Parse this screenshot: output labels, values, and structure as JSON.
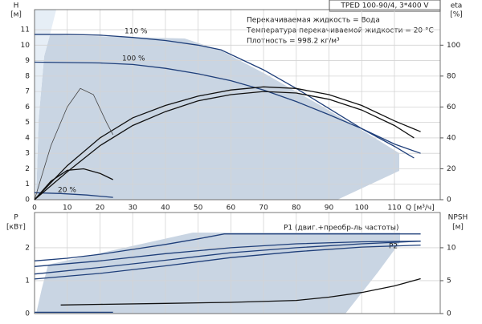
{
  "chart_data": [
    {
      "type": "line",
      "model": "TPED 100-90/4, 3*400 V",
      "info": [
        "Перекачиваемая жидкость = Вода",
        "Температура перекачиваемой жидкости = 20 °C",
        "Плотность = 998.2 кг/м³"
      ],
      "ylabel": "H",
      "yunit": "[м]",
      "y2label": "eta",
      "y2unit": "[%]",
      "xlabel": "Q [м³/ч]",
      "xlim": [
        0,
        124
      ],
      "xticks": [
        0,
        10,
        20,
        30,
        40,
        50,
        60,
        70,
        80,
        90,
        100,
        110
      ],
      "ylim": [
        0,
        12.3
      ],
      "yticks": [
        0,
        1,
        2,
        3,
        4,
        5,
        6,
        7,
        8,
        9,
        10,
        11
      ],
      "y2lim": [
        0,
        123
      ],
      "y2ticks": [
        0,
        20,
        40,
        60,
        80,
        100
      ],
      "grid": true,
      "series": [
        {
          "name": "110 %",
          "color": "#1f3f7a",
          "x": [
            0,
            10,
            20,
            30,
            40,
            50,
            57,
            70,
            80,
            90,
            100,
            110,
            118
          ],
          "values": [
            10.7,
            10.7,
            10.65,
            10.5,
            10.3,
            10.0,
            9.7,
            8.4,
            7.2,
            5.9,
            4.6,
            3.6,
            3.0
          ]
        },
        {
          "name": "100 %",
          "color": "#1f3f7a",
          "x": [
            0,
            20,
            30,
            40,
            50,
            60,
            70,
            80,
            90,
            100,
            110,
            116
          ],
          "values": [
            8.9,
            8.85,
            8.75,
            8.5,
            8.15,
            7.7,
            7.1,
            6.35,
            5.5,
            4.6,
            3.45,
            2.7
          ]
        },
        {
          "name": "20 %",
          "color": "#1f3f7a",
          "x": [
            0,
            8,
            16,
            24
          ],
          "values": [
            0.45,
            0.4,
            0.3,
            0.15
          ]
        },
        {
          "color": "#111111",
          "axis": "y2",
          "x": [
            0,
            10,
            20,
            30,
            40,
            50,
            60,
            70,
            80,
            90,
            100,
            110,
            118
          ],
          "values": [
            0,
            22,
            40,
            53,
            61,
            67,
            71,
            73,
            72,
            68,
            61,
            51,
            44
          ]
        },
        {
          "color": "#111111",
          "axis": "y2",
          "x": [
            0,
            10,
            20,
            30,
            40,
            50,
            60,
            70,
            80,
            90,
            100,
            110,
            116
          ],
          "values": [
            0,
            18,
            35,
            48,
            57,
            64,
            68,
            70,
            69,
            65,
            58,
            48,
            40
          ]
        },
        {
          "color": "#444444",
          "axis": "y2",
          "x": [
            0,
            5,
            10,
            14,
            18,
            22,
            24
          ],
          "values": [
            0,
            35,
            60,
            72,
            68,
            50,
            42
          ]
        },
        {
          "color": "#111111",
          "axis": "y2",
          "x": [
            0,
            5,
            10,
            15,
            20,
            24
          ],
          "values": [
            0,
            12,
            19,
            20,
            17,
            13
          ]
        }
      ]
    },
    {
      "type": "line",
      "ylabel": "P",
      "yunit": "[кВт]",
      "y2label": "NPSH",
      "y2unit": "[м]",
      "xlim": [
        0,
        124
      ],
      "ylim": [
        0,
        3.07
      ],
      "yticks": [
        0,
        1,
        2
      ],
      "y2lim": [
        0,
        15.35
      ],
      "y2ticks": [
        0,
        5,
        10
      ],
      "grid": true,
      "series": [
        {
          "name": "P1 (двиг.+преобр-ль частоты)",
          "color": "#1f3f7a",
          "x": [
            0,
            10,
            20,
            30,
            40,
            50,
            58,
            118
          ],
          "values": [
            1.6,
            1.68,
            1.8,
            1.95,
            2.1,
            2.27,
            2.42,
            2.42
          ]
        },
        {
          "name": "P2",
          "color": "#1f3f7a",
          "x": [
            0,
            20,
            40,
            60,
            80,
            100,
            118
          ],
          "values": [
            1.43,
            1.6,
            1.82,
            2.0,
            2.12,
            2.18,
            2.2
          ]
        },
        {
          "color": "#1f3f7a",
          "x": [
            0,
            20,
            40,
            60,
            80,
            100,
            118
          ],
          "values": [
            1.2,
            1.4,
            1.62,
            1.85,
            2.0,
            2.12,
            2.2
          ]
        },
        {
          "color": "#1f3f7a",
          "x": [
            0,
            20,
            40,
            60,
            80,
            100,
            118
          ],
          "values": [
            1.05,
            1.22,
            1.45,
            1.7,
            1.88,
            2.02,
            2.08
          ]
        },
        {
          "color": "#1f3f7a",
          "x": [
            0,
            24
          ],
          "values": [
            0.04,
            0.04
          ]
        },
        {
          "color": "#111111",
          "axis": "y2",
          "x": [
            8,
            20,
            40,
            60,
            80,
            90,
            100,
            110,
            118
          ],
          "values": [
            1.3,
            1.4,
            1.55,
            1.7,
            2.0,
            2.5,
            3.2,
            4.2,
            5.3
          ]
        }
      ]
    }
  ]
}
